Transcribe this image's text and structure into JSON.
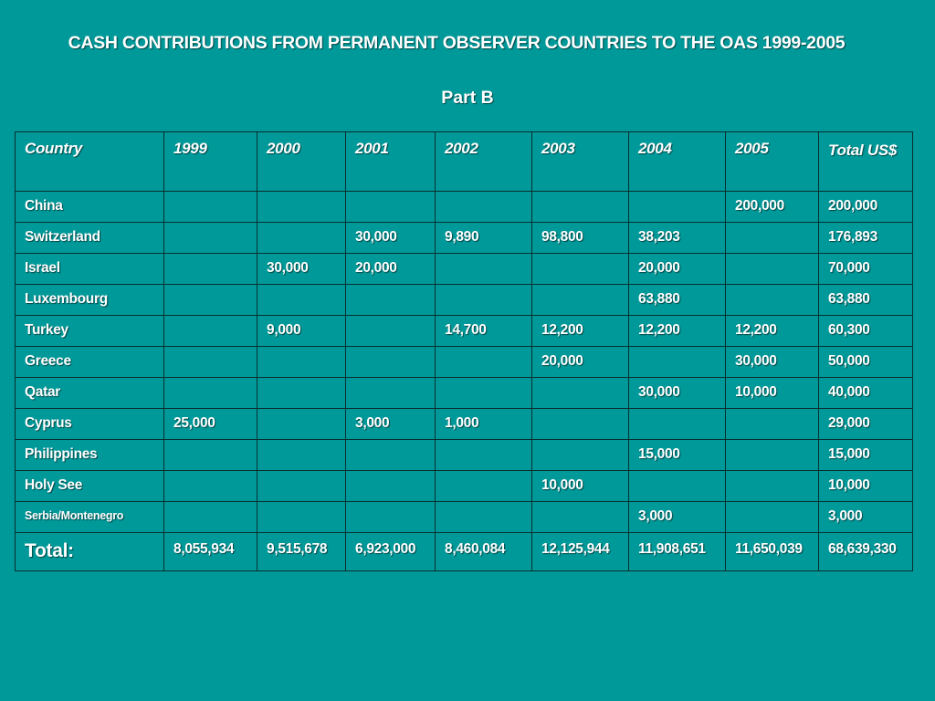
{
  "title": "CASH CONTRIBUTIONS FROM PERMANENT OBSERVER COUNTRIES TO THE OAS 1999-2005",
  "subtitle": "Part B",
  "table": {
    "headers": [
      "Country",
      "1999",
      "2000",
      "2001",
      "2002",
      "2003",
      "2004",
      "2005",
      "Total US$"
    ],
    "rows": [
      [
        "China",
        "",
        "",
        "",
        "",
        "",
        "",
        "200,000",
        "200,000"
      ],
      [
        "Switzerland",
        "",
        "",
        "30,000",
        "9,890",
        "98,800",
        "38,203",
        "",
        "176,893"
      ],
      [
        "Israel",
        "",
        "30,000",
        "20,000",
        "",
        "",
        "20,000",
        "",
        "70,000"
      ],
      [
        "Luxembourg",
        "",
        "",
        "",
        "",
        "",
        "63,880",
        "",
        "63,880"
      ],
      [
        "Turkey",
        "",
        "9,000",
        "",
        "14,700",
        "12,200",
        "12,200",
        "12,200",
        "60,300"
      ],
      [
        "Greece",
        "",
        "",
        "",
        "",
        "20,000",
        "",
        "30,000",
        "50,000"
      ],
      [
        "Qatar",
        "",
        "",
        "",
        "",
        "",
        "30,000",
        "10,000",
        "40,000"
      ],
      [
        "Cyprus",
        "25,000",
        "",
        "3,000",
        "1,000",
        "",
        "",
        "",
        "29,000"
      ],
      [
        "Philippines",
        "",
        "",
        "",
        "",
        "",
        "15,000",
        "",
        "15,000"
      ],
      [
        "Holy See",
        "",
        "",
        "",
        "",
        "10,000",
        "",
        "",
        "10,000"
      ],
      [
        "Serbia/Montenegro",
        "",
        "",
        "",
        "",
        "",
        "3,000",
        "",
        "3,000"
      ]
    ],
    "total_row": [
      "Total:",
      "8,055,934",
      "9,515,678",
      "6,923,000",
      "8,460,084",
      "12,125,944",
      "11,908,651",
      "11,650,039",
      "68,639,330"
    ]
  }
}
